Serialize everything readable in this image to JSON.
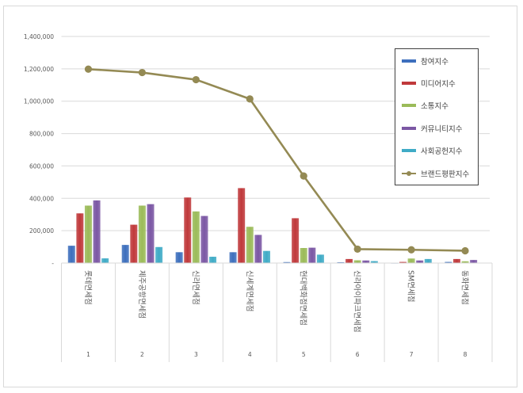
{
  "chart_data": {
    "type": "bar+line",
    "title": "",
    "xlabel": "",
    "ylabel": "",
    "ylim": [
      0,
      1400000
    ],
    "yticks": [
      "-",
      "200,000",
      "400,000",
      "600,000",
      "800,000",
      "1,000,000",
      "1,200,000",
      "1,400,000"
    ],
    "ytick_values": [
      0,
      200000,
      400000,
      600000,
      800000,
      1000000,
      1200000,
      1400000
    ],
    "grid": true,
    "legend_position": "right-inside",
    "categories": [
      "롯데면세점",
      "제주공항면세점",
      "신라면세점",
      "신세계면세점",
      "현대백화점면세점",
      "신라아이파크면세점",
      "SM면세점",
      "동화면세점"
    ],
    "category_numbers": [
      "1",
      "2",
      "3",
      "4",
      "5",
      "6",
      "7",
      "8"
    ],
    "series": [
      {
        "name": "참여지수",
        "type": "bar",
        "color": "#3d6fbd",
        "values": [
          107000,
          112000,
          67000,
          67000,
          6000,
          5000,
          1000,
          7000
        ]
      },
      {
        "name": "미디어지수",
        "type": "bar",
        "color": "#c0393b",
        "values": [
          307000,
          237000,
          405000,
          463000,
          277000,
          25000,
          7000,
          25000
        ]
      },
      {
        "name": "소통지수",
        "type": "bar",
        "color": "#9bbb59",
        "values": [
          355000,
          355000,
          319000,
          224000,
          93000,
          17000,
          28000,
          11000
        ]
      },
      {
        "name": "커뮤니티지수",
        "type": "bar",
        "color": "#7b57a4",
        "values": [
          387000,
          364000,
          291000,
          174000,
          95000,
          16000,
          16000,
          19000
        ]
      },
      {
        "name": "사회공헌지수",
        "type": "bar",
        "color": "#3fabc6",
        "values": [
          29000,
          99000,
          39000,
          75000,
          52000,
          12000,
          25000,
          0
        ]
      },
      {
        "name": "브랜드평판지수",
        "type": "line",
        "color": "#948a54",
        "values": [
          1198000,
          1177000,
          1133000,
          1014000,
          538000,
          86000,
          82000,
          76000
        ]
      }
    ]
  }
}
